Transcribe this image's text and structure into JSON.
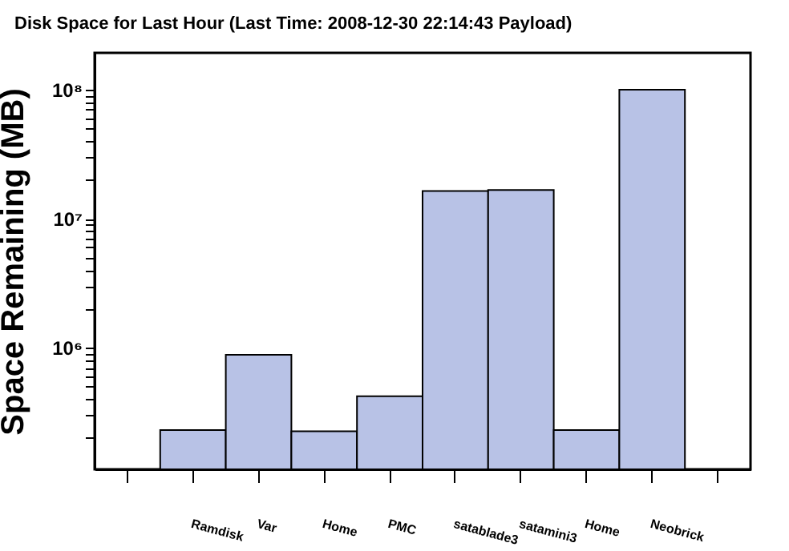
{
  "chart_data": {
    "type": "bar",
    "title": "Disk Space for Last Hour (Last Time: 2008-12-30 22:14:43 Payload)",
    "ylabel": "Space Remaining (MB)",
    "categories": [
      null,
      "Ramdisk",
      "Var",
      "Home",
      "PMC",
      "satablade3",
      "satamini3",
      "Home",
      "Neobrick",
      null
    ],
    "values": [
      null,
      230000,
      880000,
      225000,
      420000,
      16400000,
      16700000,
      230000,
      100000000,
      null
    ],
    "color": "#b8c2e6",
    "log": true,
    "ylim": [
      114000,
      193000000
    ],
    "yticks": [
      {
        "value": 200000,
        "label": null
      },
      {
        "value": 300000,
        "label": null
      },
      {
        "value": 400000,
        "label": null
      },
      {
        "value": 500000,
        "label": null
      },
      {
        "value": 600000,
        "label": null
      },
      {
        "value": 700000,
        "label": null
      },
      {
        "value": 800000,
        "label": null
      },
      {
        "value": 900000,
        "label": null
      },
      {
        "value": 1000000,
        "label": "10⁶"
      },
      {
        "value": 2000000,
        "label": null
      },
      {
        "value": 3000000,
        "label": null
      },
      {
        "value": 4000000,
        "label": null
      },
      {
        "value": 5000000,
        "label": null
      },
      {
        "value": 6000000,
        "label": null
      },
      {
        "value": 7000000,
        "label": null
      },
      {
        "value": 8000000,
        "label": null
      },
      {
        "value": 9000000,
        "label": null
      },
      {
        "value": 10000000,
        "label": "10⁷"
      },
      {
        "value": 20000000,
        "label": null
      },
      {
        "value": 30000000,
        "label": null
      },
      {
        "value": 40000000,
        "label": null
      },
      {
        "value": 50000000,
        "label": null
      },
      {
        "value": 60000000,
        "label": null
      },
      {
        "value": 70000000,
        "label": null
      },
      {
        "value": 80000000,
        "label": null
      },
      {
        "value": 90000000,
        "label": null
      },
      {
        "value": 100000000,
        "label": "10⁸"
      }
    ],
    "grid": false
  }
}
